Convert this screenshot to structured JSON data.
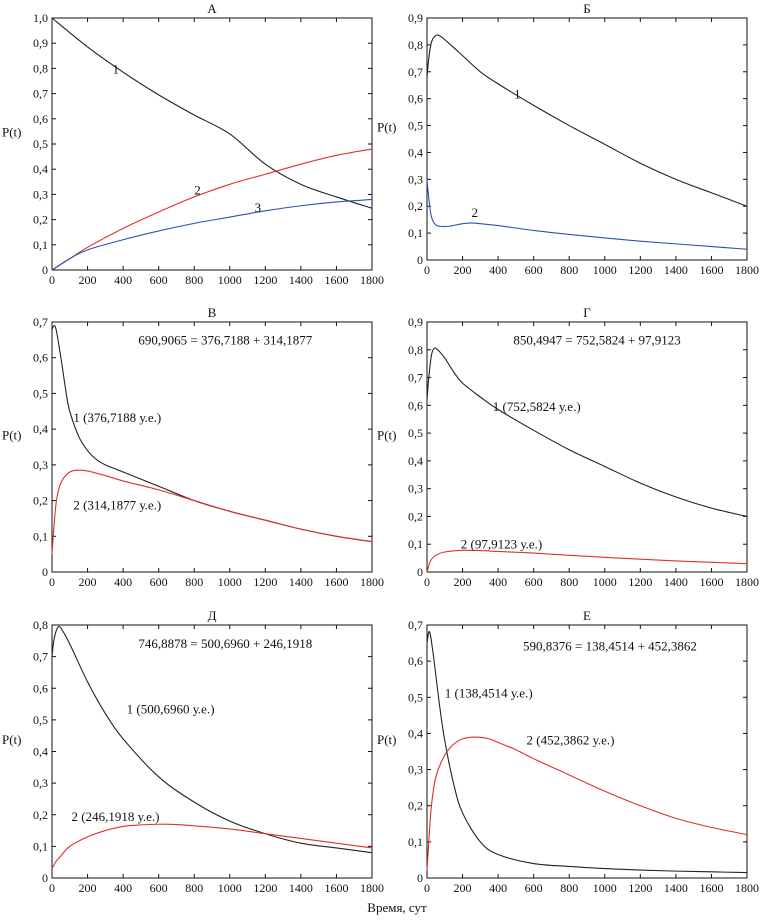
{
  "x_label": "Время, сут",
  "chart_data": [
    {
      "type": "line",
      "title": "А",
      "ylabel": "P(t)",
      "xlim": [
        0,
        1800
      ],
      "ylim": [
        0,
        1.0
      ],
      "xticks": [
        0,
        200,
        400,
        600,
        800,
        1000,
        1200,
        1400,
        1600,
        1800
      ],
      "yticks": [
        "0",
        "0,1",
        "0,2",
        "0,3",
        "0,4",
        "0,5",
        "0,6",
        "0,7",
        "0,8",
        "0,9",
        "1,0"
      ],
      "equation": "",
      "series": [
        {
          "label": "1",
          "color": "#222222",
          "label_at": [
            340,
            0.78
          ],
          "x": [
            0,
            200,
            400,
            600,
            800,
            1000,
            1200,
            1400,
            1600,
            1800
          ],
          "y": [
            1.0,
            0.885,
            0.785,
            0.695,
            0.615,
            0.54,
            0.42,
            0.34,
            0.29,
            0.245
          ]
        },
        {
          "label": "2",
          "color": "#e03030",
          "label_at": [
            800,
            0.3
          ],
          "x": [
            0,
            100,
            200,
            400,
            600,
            800,
            1000,
            1200,
            1400,
            1600,
            1800
          ],
          "y": [
            0.0,
            0.045,
            0.09,
            0.165,
            0.23,
            0.29,
            0.34,
            0.38,
            0.42,
            0.455,
            0.48
          ]
        },
        {
          "label": "3",
          "color": "#3050b8",
          "label_at": [
            1140,
            0.23
          ],
          "x": [
            0,
            100,
            200,
            400,
            600,
            800,
            1000,
            1200,
            1400,
            1600,
            1800
          ],
          "y": [
            0.0,
            0.045,
            0.08,
            0.12,
            0.155,
            0.185,
            0.21,
            0.235,
            0.255,
            0.27,
            0.28
          ]
        }
      ]
    },
    {
      "type": "line",
      "title": "Б",
      "ylabel": "P(t)",
      "xlim": [
        0,
        1800
      ],
      "ylim": [
        0,
        0.9
      ],
      "xticks": [
        0,
        200,
        400,
        600,
        800,
        1000,
        1200,
        1400,
        1600,
        1800
      ],
      "yticks": [
        "0",
        "0,1",
        "0,2",
        "0,3",
        "0,4",
        "0,5",
        "0,6",
        "0,7",
        "0,8",
        "0,9"
      ],
      "equation": "",
      "series": [
        {
          "label": "1",
          "color": "#222222",
          "label_at": [
            490,
            0.6
          ],
          "x": [
            0,
            10,
            25,
            50,
            80,
            150,
            200,
            300,
            400,
            600,
            800,
            1000,
            1200,
            1400,
            1600,
            1800
          ],
          "y": [
            0.68,
            0.75,
            0.81,
            0.835,
            0.83,
            0.79,
            0.76,
            0.7,
            0.655,
            0.575,
            0.5,
            0.43,
            0.36,
            0.3,
            0.25,
            0.2
          ]
        },
        {
          "label": "2",
          "color": "#3050b8",
          "label_at": [
            250,
            0.16
          ],
          "x": [
            0,
            10,
            25,
            50,
            80,
            120,
            200,
            250,
            300,
            400,
            600,
            800,
            1000,
            1200,
            1400,
            1600,
            1800
          ],
          "y": [
            0.3,
            0.23,
            0.16,
            0.13,
            0.125,
            0.125,
            0.135,
            0.138,
            0.135,
            0.128,
            0.11,
            0.095,
            0.082,
            0.07,
            0.06,
            0.05,
            0.04
          ]
        }
      ]
    },
    {
      "type": "line",
      "title": "В",
      "ylabel": "P(t)",
      "xlim": [
        0,
        1800
      ],
      "ylim": [
        0,
        0.7
      ],
      "xticks": [
        0,
        200,
        400,
        600,
        800,
        1000,
        1200,
        1400,
        1600,
        1800
      ],
      "yticks": [
        "0",
        "0,1",
        "0,2",
        "0,3",
        "0,4",
        "0,5",
        "0,6",
        "0,7"
      ],
      "equation": "690,9065 = 376,7188 + 314,1877",
      "series": [
        {
          "label": "1 (376,7188 у.е.)",
          "color": "#222222",
          "label_at": [
            120,
            0.42
          ],
          "x": [
            0,
            20,
            50,
            80,
            100,
            150,
            200,
            250,
            300,
            400,
            600,
            800,
            1000,
            1200,
            1400,
            1600,
            1800
          ],
          "y": [
            0.68,
            0.685,
            0.6,
            0.5,
            0.45,
            0.38,
            0.34,
            0.315,
            0.3,
            0.28,
            0.24,
            0.2,
            0.17,
            0.145,
            0.12,
            0.1,
            0.085
          ]
        },
        {
          "label": "2 (314,1877 у.е.)",
          "color": "#e03030",
          "label_at": [
            120,
            0.175
          ],
          "x": [
            0,
            10,
            25,
            50,
            100,
            150,
            200,
            300,
            400,
            600,
            800,
            1000,
            1200,
            1400,
            1600,
            1800
          ],
          "y": [
            0.05,
            0.12,
            0.2,
            0.25,
            0.28,
            0.285,
            0.283,
            0.27,
            0.255,
            0.23,
            0.2,
            0.17,
            0.145,
            0.12,
            0.1,
            0.085
          ]
        }
      ]
    },
    {
      "type": "line",
      "title": "Г",
      "ylabel": "P(t)",
      "xlim": [
        0,
        1800
      ],
      "ylim": [
        0,
        0.9
      ],
      "xticks": [
        0,
        200,
        400,
        600,
        800,
        1000,
        1200,
        1400,
        1600,
        1800
      ],
      "yticks": [
        "0",
        "0,1",
        "0,2",
        "0,3",
        "0,4",
        "0,5",
        "0,6",
        "0,7",
        "0,8",
        "0,9"
      ],
      "equation": "850,4947 = 752,5824 + 97,9123",
      "series": [
        {
          "label": "1 (752,5824 у.е.)",
          "color": "#222222",
          "label_at": [
            370,
            0.58
          ],
          "x": [
            0,
            10,
            25,
            40,
            60,
            100,
            150,
            200,
            300,
            400,
            600,
            800,
            1000,
            1200,
            1400,
            1600,
            1800
          ],
          "y": [
            0.62,
            0.7,
            0.78,
            0.805,
            0.8,
            0.77,
            0.72,
            0.68,
            0.63,
            0.585,
            0.51,
            0.44,
            0.38,
            0.32,
            0.27,
            0.23,
            0.2
          ]
        },
        {
          "label": "2 (97,9123 у.е.)",
          "color": "#e03030",
          "label_at": [
            190,
            0.085
          ],
          "x": [
            0,
            20,
            50,
            100,
            200,
            300,
            400,
            600,
            800,
            1000,
            1200,
            1400,
            1600,
            1800
          ],
          "y": [
            0.0,
            0.04,
            0.06,
            0.072,
            0.078,
            0.077,
            0.074,
            0.068,
            0.06,
            0.053,
            0.046,
            0.04,
            0.035,
            0.03
          ]
        }
      ]
    },
    {
      "type": "line",
      "title": "Д",
      "ylabel": "P(t)",
      "xlim": [
        0,
        1800
      ],
      "ylim": [
        0,
        0.8
      ],
      "xticks": [
        0,
        200,
        400,
        600,
        800,
        1000,
        1200,
        1400,
        1600,
        1800
      ],
      "yticks": [
        "0",
        "0,1",
        "0,2",
        "0,3",
        "0,4",
        "0,5",
        "0,6",
        "0,7",
        "0,8"
      ],
      "equation": "746,8878 = 500,6960 + 246,1918",
      "series": [
        {
          "label": "1 (500,6960 у.е.)",
          "color": "#222222",
          "label_at": [
            420,
            0.52
          ],
          "x": [
            0,
            10,
            30,
            50,
            100,
            200,
            300,
            400,
            600,
            800,
            1000,
            1200,
            1400,
            1600,
            1800
          ],
          "y": [
            0.7,
            0.75,
            0.79,
            0.79,
            0.74,
            0.62,
            0.52,
            0.44,
            0.32,
            0.24,
            0.18,
            0.14,
            0.11,
            0.095,
            0.08
          ]
        },
        {
          "label": "2 (246,1918 у.е.)",
          "color": "#e03030",
          "label_at": [
            110,
            0.18
          ],
          "x": [
            0,
            20,
            50,
            100,
            200,
            300,
            400,
            500,
            600,
            700,
            800,
            1000,
            1200,
            1400,
            1600,
            1800
          ],
          "y": [
            0.03,
            0.05,
            0.07,
            0.1,
            0.13,
            0.15,
            0.163,
            0.168,
            0.17,
            0.169,
            0.165,
            0.155,
            0.14,
            0.125,
            0.11,
            0.095
          ]
        }
      ]
    },
    {
      "type": "line",
      "title": "Е",
      "ylabel": "P(t)",
      "xlim": [
        0,
        1800
      ],
      "ylim": [
        0,
        0.7
      ],
      "xticks": [
        0,
        200,
        400,
        600,
        800,
        1000,
        1200,
        1400,
        1600,
        1800
      ],
      "yticks": [
        "0",
        "0,1",
        "0,2",
        "0,3",
        "0,4",
        "0,5",
        "0,6",
        "0,7"
      ],
      "equation": "590,8376 = 138,4514 + 452,3862",
      "series": [
        {
          "label": "1 (138,4514 у.е.)",
          "color": "#222222",
          "label_at": [
            100,
            0.5
          ],
          "x": [
            0,
            10,
            20,
            40,
            70,
            100,
            150,
            200,
            300,
            400,
            600,
            800,
            1000,
            1200,
            1400,
            1600,
            1800
          ],
          "y": [
            0.65,
            0.68,
            0.67,
            0.6,
            0.48,
            0.38,
            0.26,
            0.18,
            0.1,
            0.065,
            0.04,
            0.032,
            0.026,
            0.022,
            0.019,
            0.017,
            0.015
          ]
        },
        {
          "label": "2 (452,3862 у.е.)",
          "color": "#e03030",
          "label_at": [
            560,
            0.37
          ],
          "x": [
            0,
            10,
            25,
            50,
            100,
            150,
            200,
            270,
            350,
            400,
            500,
            600,
            800,
            1000,
            1200,
            1400,
            1600,
            1800
          ],
          "y": [
            0.02,
            0.1,
            0.2,
            0.28,
            0.34,
            0.37,
            0.385,
            0.39,
            0.385,
            0.375,
            0.355,
            0.33,
            0.285,
            0.24,
            0.2,
            0.165,
            0.14,
            0.12
          ]
        }
      ]
    }
  ]
}
